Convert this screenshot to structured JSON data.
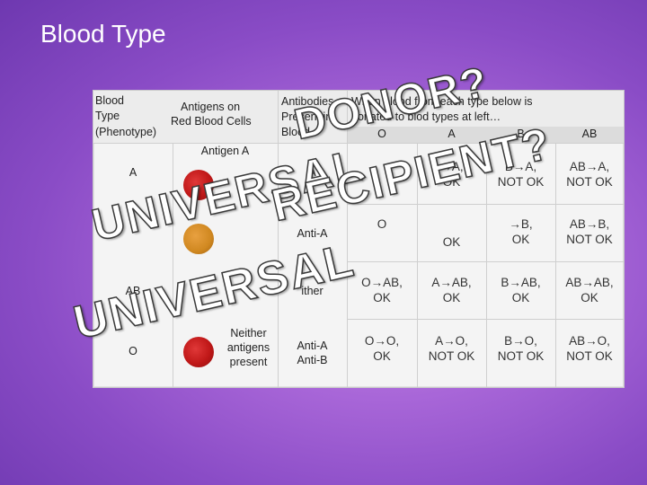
{
  "slide": {
    "title": "Blood Type"
  },
  "header": {
    "col1": [
      "Blood",
      "Type",
      "(Phenotype)"
    ],
    "col2": [
      "Antigens on",
      "Red Blood Cells"
    ],
    "col3": [
      "Antibodies",
      "Present in",
      "Blood"
    ],
    "col4": [
      "When blood from each type below is",
      "donated to blod types at left…"
    ],
    "donor_types": [
      "O",
      "A",
      "B",
      "AB"
    ]
  },
  "rows": [
    {
      "type": "A",
      "antigen": "Antigen A",
      "antibodies": "A",
      "cells": [
        "",
        "→A,\nOK",
        "B→A,\nNOT OK",
        "AB→A,\nNOT OK"
      ]
    },
    {
      "type": "",
      "antigen": "",
      "antibodies": "Anti-A",
      "cells": [
        "O",
        "OK",
        "→B,\nOK",
        "AB→B,\nNOT OK"
      ]
    },
    {
      "type": "AB",
      "antigen": "",
      "antibodies": "ither",
      "cells": [
        "O→AB,\nOK",
        "A→AB,\nOK",
        "B→AB,\nOK",
        "AB→AB,\nOK"
      ]
    },
    {
      "type": "O",
      "antigen": "Neither\nantigens\npresent",
      "antibodies": "Anti-A\nAnti-B",
      "cells": [
        "O→O,\nOK",
        "A→O,\nNOT OK",
        "B→O,\nNOT OK",
        "AB→O,\nNOT OK"
      ]
    }
  ],
  "watermarks": [
    "DONOR?",
    "UNIVERSAL",
    "RECIPIENT?",
    "UNIVERSAL"
  ]
}
